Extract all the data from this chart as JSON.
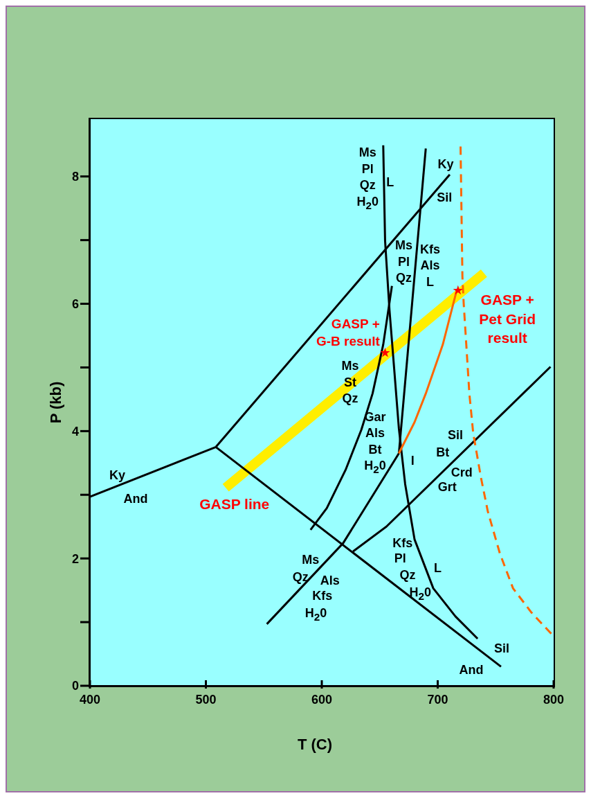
{
  "chart_data": {
    "type": "line",
    "xlabel": "T (C)",
    "ylabel": "P (kb)",
    "xlim": [
      400,
      800
    ],
    "ylim": [
      0,
      8.9
    ],
    "xticks": [
      400,
      500,
      600,
      700,
      800
    ],
    "yticks": [
      0,
      {
        "value": 1,
        "label": null
      },
      2,
      {
        "value": 3,
        "label": null
      },
      4,
      {
        "value": 5,
        "label": null
      },
      6,
      {
        "value": 7,
        "label": null
      },
      8
    ],
    "series": [
      {
        "color": "#ffee00",
        "x": [
          517.1,
          739.9
        ],
        "values": [
          3.11,
          6.48
        ]
      },
      {
        "color": "#000000",
        "x": [
          400,
          508.6
        ],
        "values": [
          2.97,
          3.75
        ]
      },
      {
        "color": "#000000",
        "x": [
          508.6,
          710.4
        ],
        "values": [
          3.75,
          8.03
        ]
      },
      {
        "color": "#000000",
        "x": [
          508.6,
          754.6
        ],
        "values": [
          3.75,
          0.3
        ]
      },
      {
        "color": "#000000",
        "x": [
          653,
          654.6,
          658.4,
          662.7,
          666.5,
          671.9,
          680,
          696.2,
          715.3,
          734.4
        ],
        "values": [
          8.49,
          6.99,
          5.9,
          4.92,
          4.04,
          3.17,
          2.3,
          1.53,
          1.09,
          0.74
        ]
      },
      {
        "color": "#000000",
        "x": [
          689.7,
          666.5
        ],
        "values": [
          8.44,
          3.65
        ]
      },
      {
        "color": "#000000",
        "x": [
          666.5,
          618.4,
          552.6
        ],
        "values": [
          3.65,
          2.24,
          0.97
        ]
      },
      {
        "color": "#000000",
        "x": [
          660.5,
          653,
          643.8,
          634.1,
          620.5,
          604.3,
          590.3
        ],
        "values": [
          6.28,
          5.36,
          4.59,
          4.02,
          3.39,
          2.79,
          2.45
        ]
      },
      {
        "color": "#000000",
        "x": [
          627,
          655.7,
          797.3
        ],
        "values": [
          2.11,
          2.5,
          5.01
        ]
      },
      {
        "color": "#ff6600",
        "x": [
          666.5,
          680,
          689.7,
          704.4,
          716.4
        ],
        "values": [
          3.65,
          4.14,
          4.59,
          5.36,
          6.21
        ]
      },
      {
        "color": "#ff6600",
        "line_style": "dashed",
        "x": [
          719.7,
          721.3,
          722.4,
          727.3,
          730.6,
          737.2,
          743.2,
          753.6,
          765,
          780.9,
          798.9
        ],
        "values": [
          8.47,
          6.43,
          6.01,
          4.59,
          3.97,
          3.28,
          2.74,
          2.08,
          1.53,
          1.15,
          0.8
        ]
      },
      {
        "type": "scatter",
        "color": "#ff0000",
        "marker": "star",
        "x": [
          654.6,
          717.5
        ],
        "values": [
          5.23,
          6.21
        ]
      }
    ],
    "annotations": [
      "Ky",
      "And",
      "Ky",
      "Sil",
      "Sil",
      "And",
      "Ms\nPl\nQz\nH$_{2}$0",
      "L",
      "Ms\nPl\nQz",
      "Kfs\nAls\nL",
      "Ms\nSt\nQz",
      "Gar\nAls\nBt\nH$_{2}$0",
      "Sil",
      "Bt",
      "Crd",
      "Grt",
      "I",
      "Ms",
      "Qz",
      "Als",
      "Kfs",
      "H$_{2}$0",
      "Kfs",
      "Pl",
      "Qz",
      "H$_{2}$0",
      "L",
      "GASP +\nG-B result",
      "GASP +\nPet Grid\nresult",
      "GASP line"
    ]
  }
}
